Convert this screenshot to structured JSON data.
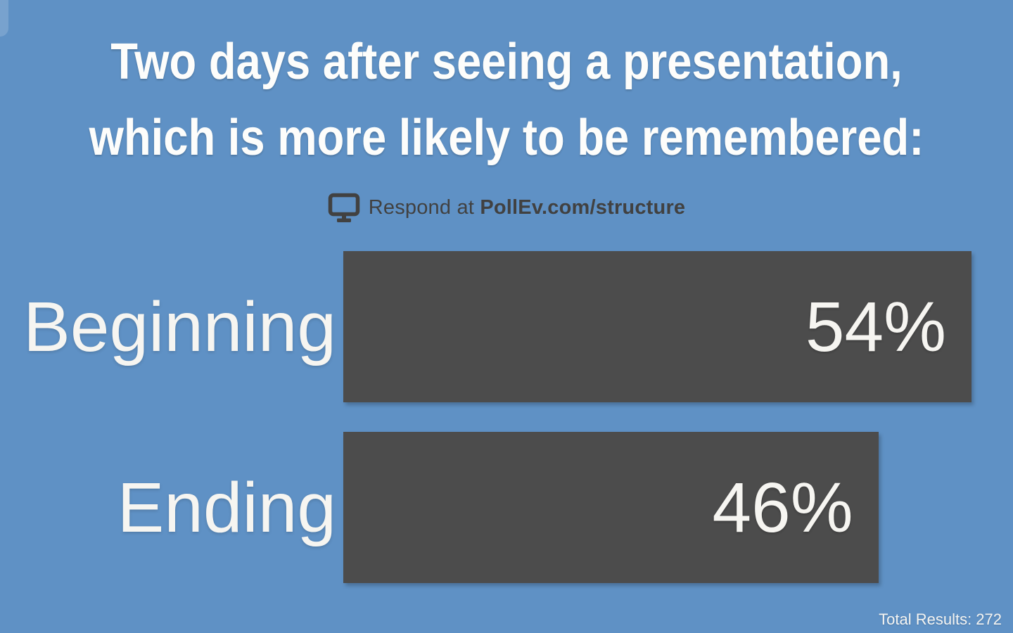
{
  "title": {
    "line1": "Two days after seeing a presentation,",
    "line2": "which is more likely to be remembered:"
  },
  "respond": {
    "prefix": "Respond at ",
    "url": "PollEv.com/structure",
    "icon": "monitor-icon"
  },
  "chart_data": {
    "type": "bar",
    "orientation": "horizontal",
    "title": "Two days after seeing a presentation, which is more likely to be remembered:",
    "categories": [
      "Beginning",
      "Ending"
    ],
    "values": [
      54,
      46
    ],
    "value_labels": [
      "54%",
      "46%"
    ],
    "value_unit": "%",
    "max_value": 54,
    "legend": "none",
    "grid": false,
    "bar_color": "#4C4C4C",
    "label_color": "#F6F5F1",
    "background_color": "#5F91C5"
  },
  "footer": {
    "total_results": "Total Results: 272"
  },
  "colors": {
    "background": "#5F91C5",
    "bar": "#4C4C4C",
    "title_text": "#FDFDFB",
    "respond_text": "#414141"
  }
}
